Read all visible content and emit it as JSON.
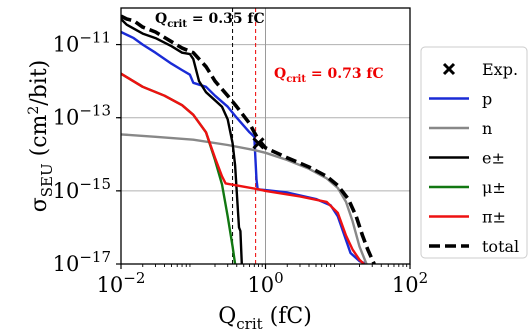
{
  "chart_data": {
    "type": "line",
    "x_scale": "log",
    "y_scale": "log",
    "xlim": [
      0.01,
      100
    ],
    "ylim": [
      1e-17,
      1e-10
    ],
    "grid": "horizontal at y decades",
    "legend_placement": "right, outside plot",
    "xlabel": "Q",
    "xlabel_sub": "crit",
    "xlabel_unit": " (fC)",
    "ylabel": "σ",
    "ylabel_sub": "SEU",
    "ylabel_unit_pre": " (cm",
    "ylabel_unit_sup": "2",
    "ylabel_unit_post": "/bit)",
    "x_ticks": [
      {
        "value": 0.01,
        "base": "10",
        "exp": "−2"
      },
      {
        "value": 1,
        "base": "10",
        "exp": "0"
      },
      {
        "value": 100,
        "base": "10",
        "exp": "2"
      }
    ],
    "y_ticks": [
      {
        "value": 1e-11,
        "base": "10",
        "exp": "−11"
      },
      {
        "value": 1e-13,
        "base": "10",
        "exp": "−13"
      },
      {
        "value": 1e-15,
        "base": "10",
        "exp": "−15"
      },
      {
        "value": 1e-17,
        "base": "10",
        "exp": "−17"
      }
    ],
    "annotations": [
      {
        "id": "qcrit-black",
        "pre": "Q",
        "sub": "crit",
        "post": " = 0.35 fC",
        "x": 0.35,
        "color": "#000000"
      },
      {
        "id": "qcrit-red",
        "pre": "Q",
        "sub": "crit",
        "post": " = 0.73 fC",
        "x": 0.73,
        "color": "#ee0000"
      }
    ],
    "grey_vline_x": 1.0,
    "series": [
      {
        "name": "p",
        "color": "#1a2bd6",
        "dash": false,
        "points": [
          [
            0.01,
            2.2e-11
          ],
          [
            0.015,
            1.5e-11
          ],
          [
            0.02,
            1e-11
          ],
          [
            0.03,
            6e-12
          ],
          [
            0.05,
            3e-12
          ],
          [
            0.07,
            2e-12
          ],
          [
            0.09,
            1.5e-12
          ],
          [
            0.1,
            9e-13
          ],
          [
            0.15,
            7e-13
          ],
          [
            0.2,
            4e-13
          ],
          [
            0.3,
            2e-13
          ],
          [
            0.4,
            1e-13
          ],
          [
            0.5,
            6e-14
          ],
          [
            0.6,
            4e-14
          ],
          [
            0.7,
            3e-14
          ],
          [
            0.72,
            1e-14
          ],
          [
            0.75,
            2e-15
          ],
          [
            0.78,
            1.1e-15
          ],
          [
            1,
            1.05e-15
          ],
          [
            2,
            9e-16
          ],
          [
            5,
            6e-16
          ],
          [
            8,
            4e-16
          ],
          [
            10,
            2e-16
          ],
          [
            15,
            2e-17
          ],
          [
            20,
            1.2e-17
          ],
          [
            25,
            1e-17
          ]
        ]
      },
      {
        "name": "n",
        "color": "#888888",
        "dash": false,
        "points": [
          [
            0.01,
            3.5e-14
          ],
          [
            0.03,
            3e-14
          ],
          [
            0.1,
            2.5e-14
          ],
          [
            0.3,
            1.8e-14
          ],
          [
            0.7,
            1.3e-14
          ],
          [
            1,
            1.1e-14
          ],
          [
            2,
            7e-15
          ],
          [
            4,
            4e-15
          ],
          [
            7,
            2.2e-15
          ],
          [
            10,
            1.2e-15
          ],
          [
            13,
            5e-16
          ],
          [
            16,
            1.5e-16
          ],
          [
            20,
            3e-17
          ],
          [
            25,
            1e-17
          ]
        ]
      },
      {
        "name": "e±",
        "color": "#000000",
        "dash": false,
        "points": [
          [
            0.01,
            5e-11
          ],
          [
            0.012,
            3.5e-11
          ],
          [
            0.02,
            2e-11
          ],
          [
            0.03,
            1.5e-11
          ],
          [
            0.05,
            9e-12
          ],
          [
            0.07,
            6e-12
          ],
          [
            0.09,
            5.5e-12
          ],
          [
            0.1,
            4e-12
          ],
          [
            0.12,
            1e-12
          ],
          [
            0.15,
            5e-13
          ],
          [
            0.2,
            3e-13
          ],
          [
            0.25,
            2e-13
          ],
          [
            0.3,
            9e-14
          ],
          [
            0.35,
            2e-14
          ],
          [
            0.38,
            5e-15
          ],
          [
            0.4,
            1e-15
          ],
          [
            0.42,
            2e-16
          ],
          [
            0.43,
            1e-16
          ],
          [
            0.45,
            8e-17
          ],
          [
            0.47,
            1e-17
          ]
        ]
      },
      {
        "name": "μ±",
        "color": "#117711",
        "dash": false,
        "points": [
          [
            0.01,
            1.6e-12
          ],
          [
            0.02,
            7e-13
          ],
          [
            0.04,
            4e-13
          ],
          [
            0.07,
            2.2e-13
          ],
          [
            0.1,
            1.2e-13
          ],
          [
            0.15,
            4e-14
          ],
          [
            0.2,
            7e-15
          ],
          [
            0.25,
            1.5e-15
          ],
          [
            0.3,
            2e-16
          ],
          [
            0.35,
            3e-17
          ],
          [
            0.38,
            1e-17
          ]
        ]
      },
      {
        "name": "π±",
        "color": "#ee1111",
        "dash": false,
        "points": [
          [
            0.01,
            1.6e-12
          ],
          [
            0.02,
            7e-13
          ],
          [
            0.04,
            4e-13
          ],
          [
            0.07,
            2.2e-13
          ],
          [
            0.1,
            1.2e-13
          ],
          [
            0.15,
            4e-14
          ],
          [
            0.2,
            8e-15
          ],
          [
            0.25,
            2.5e-15
          ],
          [
            0.28,
            1.6e-15
          ],
          [
            0.5,
            1.3e-15
          ],
          [
            0.8,
            1.1e-15
          ],
          [
            1,
            1e-15
          ],
          [
            3,
            7e-16
          ],
          [
            7,
            5e-16
          ],
          [
            10,
            2.5e-16
          ],
          [
            13,
            6e-17
          ],
          [
            16,
            2.5e-17
          ],
          [
            20,
            1.3e-17
          ],
          [
            23,
            1e-17
          ]
        ]
      },
      {
        "name": "total",
        "color": "#000000",
        "dash": true,
        "points": [
          [
            0.01,
            6e-11
          ],
          [
            0.012,
            5e-11
          ],
          [
            0.015,
            4.5e-11
          ],
          [
            0.02,
            3e-11
          ],
          [
            0.03,
            2.2e-11
          ],
          [
            0.05,
            1.2e-11
          ],
          [
            0.07,
            8e-12
          ],
          [
            0.1,
            6e-12
          ],
          [
            0.15,
            2.5e-12
          ],
          [
            0.2,
            1e-12
          ],
          [
            0.3,
            4e-13
          ],
          [
            0.4,
            2e-13
          ],
          [
            0.6,
            7e-14
          ],
          [
            0.7,
            4e-14
          ],
          [
            0.8,
            2.5e-14
          ],
          [
            1,
            1.5e-14
          ],
          [
            2,
            8e-15
          ],
          [
            4,
            4.5e-15
          ],
          [
            7,
            2.5e-15
          ],
          [
            10,
            1.4e-15
          ],
          [
            14,
            6e-16
          ],
          [
            18,
            2e-16
          ],
          [
            22,
            6e-17
          ],
          [
            26,
            2.5e-17
          ],
          [
            32,
            1e-17
          ]
        ]
      }
    ],
    "markers": [
      {
        "name": "Exp.",
        "symbol": "x",
        "color": "#000000",
        "x": 0.8,
        "y": 2e-14
      }
    ],
    "legend": [
      {
        "label": "Exp.",
        "kind": "marker",
        "color": "#000000"
      },
      {
        "label": "p",
        "kind": "line",
        "color": "#1a2bd6"
      },
      {
        "label": "n",
        "kind": "line",
        "color": "#888888"
      },
      {
        "label": "e±",
        "kind": "line",
        "color": "#000000"
      },
      {
        "label": "μ±",
        "kind": "line",
        "color": "#117711"
      },
      {
        "label": "π±",
        "kind": "line",
        "color": "#ee1111"
      },
      {
        "label": "total",
        "kind": "dashed",
        "color": "#000000"
      }
    ]
  }
}
